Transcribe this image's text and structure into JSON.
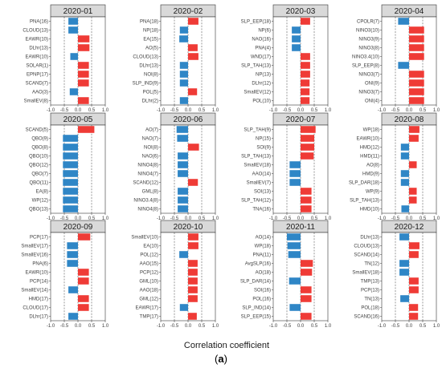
{
  "figure": {
    "xlabel": "Correlation coefficient",
    "panel_label_open": "(",
    "panel_label_letter": "a",
    "panel_label_close": ")"
  },
  "colors": {
    "positive": "#ef3b36",
    "negative": "#2f86c6"
  },
  "chart_data": [
    {
      "type": "bar",
      "orientation": "horizontal",
      "title": "2020-01",
      "xlim": [
        -1.0,
        1.0
      ],
      "xticks": [
        "-1.0",
        "-0.5",
        "0.0",
        "0.5",
        "1.0"
      ],
      "categories": [
        "PNA(16)",
        "CLOUD(13)",
        "EAWR(10)",
        "DLhr(13)",
        "EAWR(10)",
        "SOLAR(1)",
        "EPNP(17)",
        "SCAND(7)",
        "AAO(3)",
        "SmallEV(8)"
      ],
      "values": [
        -0.35,
        -0.35,
        0.42,
        0.42,
        -0.28,
        0.4,
        0.4,
        0.4,
        -0.3,
        0.4
      ]
    },
    {
      "type": "bar",
      "orientation": "horizontal",
      "title": "2020-02",
      "xlim": [
        -1.0,
        1.0
      ],
      "xticks": [
        "-1.0",
        "-0.5",
        "0.0",
        "0.5",
        "1.0"
      ],
      "categories": [
        "PNA(18)",
        "NP(18)",
        "EA(15)",
        "AO(5)",
        "CLOUD(13)",
        "DLhr(13)",
        "NOI(8)",
        "SLP_IND(9)",
        "POL(5)",
        "DLhr(2)"
      ],
      "values": [
        0.38,
        -0.3,
        -0.32,
        0.35,
        0.38,
        -0.3,
        -0.3,
        -0.3,
        0.33,
        -0.3
      ]
    },
    {
      "type": "bar",
      "orientation": "horizontal",
      "title": "2020-03",
      "xlim": [
        -1.0,
        1.0
      ],
      "xticks": [
        "-1.0",
        "-0.5",
        "0.0",
        "0.5",
        "1.0"
      ],
      "categories": [
        "SLP_EEP(18)",
        "NP(6)",
        "NAO(16)",
        "PNA(4)",
        "WND(17)",
        "SLP_TAH(13)",
        "NP(13)",
        "DLhr(12)",
        "SmallEV(12)",
        "POL(10)"
      ],
      "values": [
        0.35,
        -0.32,
        -0.32,
        -0.32,
        0.35,
        0.35,
        0.35,
        0.33,
        0.33,
        0.33
      ]
    },
    {
      "type": "bar",
      "orientation": "horizontal",
      "title": "2020-04",
      "xlim": [
        -1.0,
        1.0
      ],
      "xticks": [
        "-1.0",
        "-0.5",
        "0.0",
        "0.5",
        "1.0"
      ],
      "categories": [
        "CPOLR(7)",
        "NINO3(10)",
        "NINO3(9)",
        "NINO3(8)",
        "NINO3.4(10)",
        "SLP_EEP(8)",
        "NINO3(7)",
        "ONI(9)",
        "NINO3(7)",
        "ONI(4)"
      ],
      "values": [
        -0.4,
        0.55,
        0.55,
        0.55,
        0.55,
        -0.4,
        0.55,
        0.55,
        0.55,
        0.55
      ]
    },
    {
      "type": "bar",
      "orientation": "horizontal",
      "title": "2020-05",
      "xlim": [
        -1.0,
        1.0
      ],
      "xticks": [
        "-1.0",
        "-0.5",
        "0.0",
        "0.5",
        "1.0"
      ],
      "categories": [
        "SCAND(5)",
        "QBO(9)",
        "QBO(8)",
        "QBO(10)",
        "QBO(12)",
        "QBO(7)",
        "QBO(11)",
        "EA(8)",
        "WP(12)",
        "QBO(13)"
      ],
      "values": [
        0.6,
        -0.55,
        -0.55,
        -0.55,
        -0.55,
        -0.55,
        -0.55,
        -0.55,
        -0.55,
        -0.55
      ]
    },
    {
      "type": "bar",
      "orientation": "horizontal",
      "title": "2020-06",
      "xlim": [
        -1.0,
        1.0
      ],
      "xticks": [
        "-1.0",
        "-0.5",
        "0.0",
        "0.5",
        "1.0"
      ],
      "categories": [
        "AO(7)",
        "NAO(7)",
        "NOI(8)",
        "NAO(6)",
        "NINO4(8)",
        "NINO4(7)",
        "SCAND(12)",
        "GML(8)",
        "NINO3.4(8)",
        "NINO4(8)"
      ],
      "values": [
        -0.42,
        -0.4,
        0.4,
        -0.38,
        -0.38,
        -0.38,
        0.36,
        -0.38,
        -0.38,
        -0.38
      ]
    },
    {
      "type": "bar",
      "orientation": "horizontal",
      "title": "2020-07",
      "xlim": [
        -1.0,
        1.0
      ],
      "xticks": [
        "-1.0",
        "-0.5",
        "0.0",
        "0.5",
        "1.0"
      ],
      "categories": [
        "SLP_TAH(9)",
        "NP(15)",
        "SOI(9)",
        "SLP_TAH(13)",
        "SmallEV(18)",
        "AAO(14)",
        "SmallEV(7)",
        "SOI(13)",
        "SLP_TAH(12)",
        "TNA(16)"
      ],
      "values": [
        0.55,
        0.5,
        0.5,
        0.48,
        -0.4,
        -0.4,
        -0.4,
        0.4,
        0.4,
        0.4
      ]
    },
    {
      "type": "bar",
      "orientation": "horizontal",
      "title": "2020-08",
      "xlim": [
        -1.0,
        1.0
      ],
      "xticks": [
        "-1.0",
        "-0.5",
        "0.0",
        "0.5",
        "1.0"
      ],
      "categories": [
        "WP(18)",
        "EAWR(10)",
        "HMD(12)",
        "HMD(11)",
        "AO(8)",
        "HMD(9)",
        "SLP_DAR(18)",
        "WP(9)",
        "SLP_TAH(13)",
        "HMD(10)"
      ],
      "values": [
        0.38,
        0.35,
        -0.3,
        -0.3,
        0.28,
        -0.3,
        -0.3,
        0.28,
        0.28,
        -0.28
      ]
    },
    {
      "type": "bar",
      "orientation": "horizontal",
      "title": "2020-09",
      "xlim": [
        -1.0,
        1.0
      ],
      "xticks": [
        "-1.0",
        "-0.5",
        "0.0",
        "0.5",
        "1.0"
      ],
      "categories": [
        "PCP(17)",
        "SmallEV(17)",
        "SmallEV(16)",
        "PNA(6)",
        "EAWR(10)",
        "PCP(14)",
        "SmallEV(14)",
        "HMD(17)",
        "CLOUD(17)",
        "DLhr(17)"
      ],
      "values": [
        0.45,
        -0.4,
        -0.4,
        -0.4,
        0.4,
        0.4,
        -0.35,
        0.4,
        0.4,
        -0.35
      ]
    },
    {
      "type": "bar",
      "orientation": "horizontal",
      "title": "2020-10",
      "xlim": [
        -1.0,
        1.0
      ],
      "xticks": [
        "-1.0",
        "-0.5",
        "0.0",
        "0.5",
        "1.0"
      ],
      "categories": [
        "SmallEV(10)",
        "EA(10)",
        "POL(12)",
        "AAO(15)",
        "PCP(12)",
        "GML(10)",
        "AAO(18)",
        "GML(12)",
        "EAWR(17)",
        "TMP(17)"
      ],
      "values": [
        0.38,
        0.38,
        -0.32,
        0.35,
        0.35,
        0.35,
        0.35,
        0.35,
        -0.3,
        0.32
      ]
    },
    {
      "type": "bar",
      "orientation": "horizontal",
      "title": "2020-11",
      "xlim": [
        -1.0,
        1.0
      ],
      "xticks": [
        "-1.0",
        "-0.5",
        "0.0",
        "0.5",
        "1.0"
      ],
      "categories": [
        "AO(14)",
        "WP(18)",
        "PNA(11)",
        "AvgSLP(16)",
        "AO(18)",
        "SLP_DAR(14)",
        "SOI(16)",
        "POL(16)",
        "SLP_IND(14)",
        "SLP_EEP(15)"
      ],
      "values": [
        -0.5,
        -0.48,
        -0.45,
        0.45,
        0.42,
        -0.42,
        0.4,
        0.4,
        -0.4,
        0.4
      ]
    },
    {
      "type": "bar",
      "orientation": "horizontal",
      "title": "2020-12",
      "xlim": [
        -1.0,
        1.0
      ],
      "xticks": [
        "-1.0",
        "-0.5",
        "0.0",
        "0.5",
        "1.0"
      ],
      "categories": [
        "DLhr(13)",
        "CLOUD(13)",
        "SCAND(14)",
        "TN(12)",
        "SmallEV(18)",
        "TMP(13)",
        "PCP(13)",
        "TN(13)",
        "POL(18)",
        "SCAND(16)"
      ],
      "values": [
        -0.35,
        0.38,
        0.35,
        -0.35,
        -0.35,
        0.35,
        0.35,
        -0.32,
        0.33,
        0.33
      ]
    }
  ]
}
